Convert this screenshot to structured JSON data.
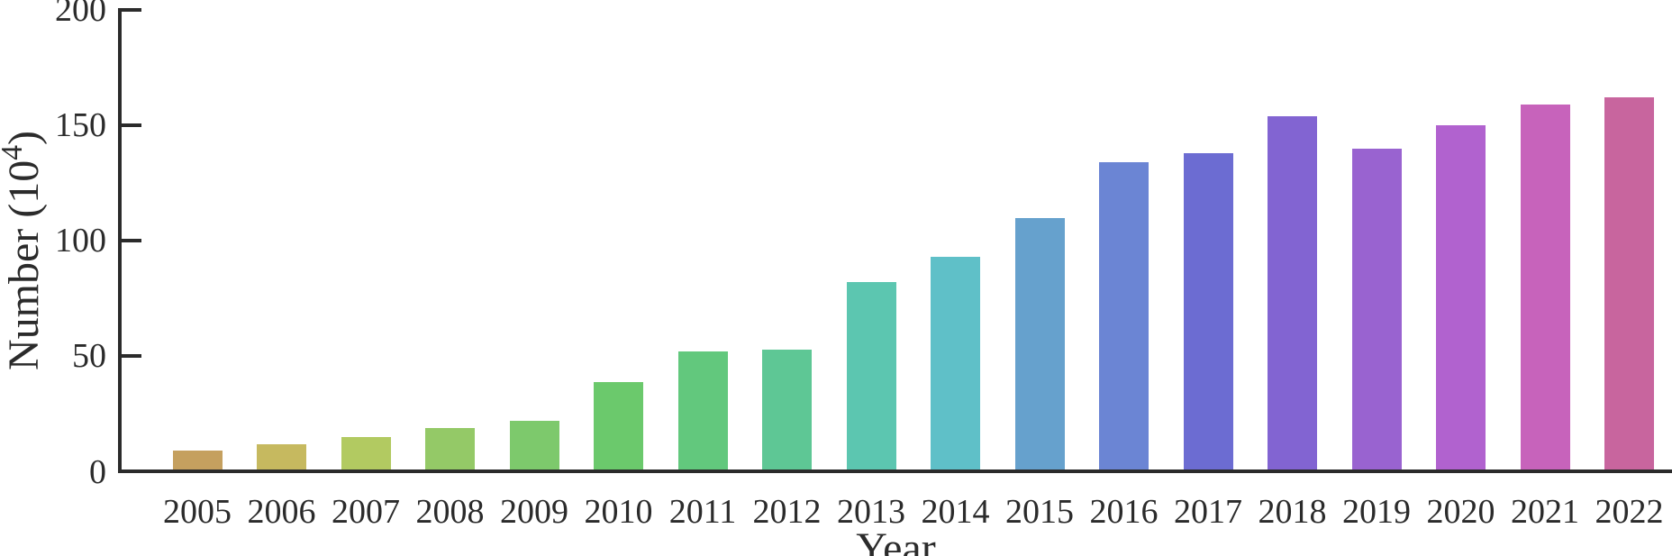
{
  "chart_data": {
    "type": "bar",
    "title": "",
    "xlabel": "Year",
    "ylabel": "Number (10^4)",
    "ylabel_parts": {
      "base": "Number (10",
      "sup": "4",
      "close": ")"
    },
    "categories": [
      "2005",
      "2006",
      "2007",
      "2008",
      "2009",
      "2010",
      "2011",
      "2012",
      "2013",
      "2014",
      "2015",
      "2016",
      "2017",
      "2018",
      "2019",
      "2020",
      "2021",
      "2022"
    ],
    "values": [
      9,
      12,
      15,
      19,
      22,
      39,
      52,
      53,
      82,
      93,
      110,
      134,
      138,
      154,
      140,
      150,
      159,
      162
    ],
    "bar_colors": [
      "#c5a05f",
      "#c6b95f",
      "#b2ca61",
      "#94c967",
      "#7dc96c",
      "#6bc96c",
      "#62c87d",
      "#5ec795",
      "#5cc6b0",
      "#5fc0c8",
      "#66a1cd",
      "#6b85d4",
      "#6c6cd2",
      "#8264d2",
      "#9963d0",
      "#b162cf",
      "#c763bb",
      "#c8659e"
    ],
    "ylim": [
      0,
      200
    ],
    "yticks": [
      0,
      50,
      100,
      150,
      200
    ],
    "ytick_labels": [
      "0",
      "50",
      "100",
      "150",
      "200"
    ],
    "grid": "off",
    "legend": "none",
    "axis_color": "#2b2b2b",
    "background": "#ffffff"
  }
}
